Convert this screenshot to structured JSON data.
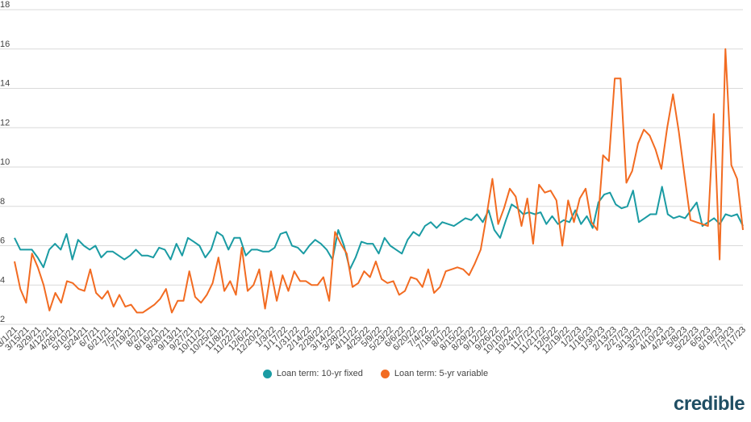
{
  "chart_data": {
    "type": "line",
    "ylim": [
      2,
      18
    ],
    "yticks": [
      2,
      4,
      6,
      8,
      10,
      12,
      14,
      16,
      18
    ],
    "grid": true,
    "legend_position": "bottom",
    "brand": "credible",
    "x_tick_labels": [
      "3/1/21",
      "3/15/21",
      "3/29/21",
      "4/12/21",
      "4/26/21",
      "5/10/21",
      "5/24/21",
      "6/7/21",
      "6/21/21",
      "7/5/21",
      "7/19/21",
      "8/2/21",
      "8/16/21",
      "8/30/21",
      "9/13/21",
      "9/27/21",
      "10/11/21",
      "10/25/21",
      "11/8/21",
      "11/22/21",
      "12/6/21",
      "12/20/21",
      "1/3/22",
      "1/17/22",
      "1/31/22",
      "2/14/22",
      "2/28/22",
      "3/14/22",
      "3/28/22",
      "4/11/22",
      "4/25/22",
      "5/9/22",
      "5/23/22",
      "6/6/22",
      "6/20/22",
      "7/4/22",
      "7/18/22",
      "8/1/22",
      "8/15/22",
      "8/29/22",
      "9/12/22",
      "9/26/22",
      "10/10/22",
      "10/24/22",
      "11/7/22",
      "11/21/22",
      "12/5/22",
      "12/19/22",
      "1/2/23",
      "1/16/23",
      "1/30/23",
      "2/13/23",
      "2/27/23",
      "3/13/23",
      "3/27/23",
      "4/10/23",
      "4/24/23",
      "5/8/23",
      "5/22/23",
      "6/5/23",
      "6/19/23",
      "7/3/23",
      "7/17/23"
    ],
    "series": [
      {
        "name": "Loan term: 10-yr fixed",
        "color": "#1a9ba3",
        "values": [
          6.4,
          5.8,
          5.8,
          5.8,
          5.4,
          4.9,
          5.8,
          6.1,
          5.8,
          6.6,
          5.3,
          6.3,
          6.0,
          5.8,
          6.0,
          5.4,
          5.7,
          5.7,
          5.5,
          5.3,
          5.5,
          5.8,
          5.5,
          5.5,
          5.4,
          5.9,
          5.8,
          5.3,
          6.1,
          5.5,
          6.4,
          6.2,
          6.0,
          5.4,
          5.8,
          6.7,
          6.5,
          5.8,
          6.4,
          6.4,
          5.5,
          5.8,
          5.8,
          5.7,
          5.7,
          5.9,
          6.6,
          6.7,
          6.0,
          5.9,
          5.6,
          6.0,
          6.3,
          6.1,
          5.8,
          5.3,
          6.8,
          6.0,
          4.8,
          5.4,
          6.2,
          6.1,
          6.1,
          5.6,
          6.4,
          6.0,
          5.8,
          5.6,
          6.3,
          6.7,
          6.5,
          7.0,
          7.2,
          6.9,
          7.2,
          7.1,
          7.0,
          7.2,
          7.4,
          7.3,
          7.6,
          7.2,
          7.8,
          6.8,
          6.4,
          7.3,
          8.1,
          7.9,
          7.6,
          7.7,
          7.6,
          7.7,
          7.1,
          7.5,
          7.1,
          7.3,
          7.2,
          7.8,
          7.1,
          7.5,
          6.9,
          8.2,
          8.6,
          8.7,
          8.1,
          7.9,
          8.0,
          8.8,
          7.2,
          7.4,
          7.6,
          7.6,
          9.0,
          7.6,
          7.4,
          7.5,
          7.4,
          7.8,
          8.2,
          7.0,
          7.2,
          7.4,
          7.1,
          7.6,
          7.5,
          7.6,
          7.0
        ]
      },
      {
        "name": "Loan term: 5-yr variable",
        "color": "#f26b21",
        "values": [
          5.2,
          3.8,
          3.1,
          5.6,
          4.9,
          4.0,
          2.7,
          3.6,
          3.1,
          4.2,
          4.1,
          3.8,
          3.7,
          4.8,
          3.6,
          3.3,
          3.7,
          2.9,
          3.5,
          2.9,
          3.0,
          2.6,
          2.6,
          2.8,
          3.0,
          3.3,
          3.8,
          2.6,
          3.2,
          3.2,
          4.7,
          3.4,
          3.1,
          3.5,
          4.1,
          5.4,
          3.7,
          4.2,
          3.5,
          5.9,
          3.7,
          4.0,
          4.8,
          2.8,
          4.7,
          3.2,
          4.5,
          3.7,
          4.7,
          4.2,
          4.2,
          4.0,
          4.0,
          4.4,
          3.2,
          6.7,
          6.1,
          5.6,
          3.9,
          4.1,
          4.7,
          4.4,
          5.2,
          4.3,
          4.1,
          4.2,
          3.5,
          3.7,
          4.4,
          4.3,
          3.9,
          4.8,
          3.6,
          3.9,
          4.7,
          4.8,
          4.9,
          4.8,
          4.5,
          5.1,
          5.8,
          7.5,
          9.4,
          7.1,
          7.9,
          8.9,
          8.5,
          7.0,
          8.4,
          6.1,
          9.1,
          8.7,
          8.8,
          8.3,
          6.0,
          8.3,
          7.2,
          8.4,
          8.9,
          7.2,
          6.8,
          10.6,
          10.3,
          14.5,
          14.5,
          9.2,
          9.8,
          11.2,
          11.9,
          11.6,
          10.9,
          9.9,
          12.0,
          13.7,
          11.8,
          9.5,
          7.3,
          7.2,
          7.1,
          7.0,
          12.7,
          5.3,
          16.0,
          10.1,
          9.4,
          6.8
        ]
      }
    ]
  }
}
